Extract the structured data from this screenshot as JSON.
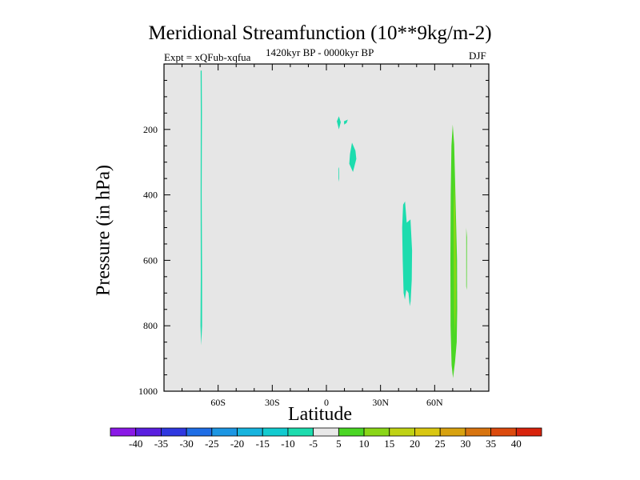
{
  "chart_data": {
    "type": "contour",
    "title": "Meridional Streamfunction (10**9kg/m-2)",
    "subtitle_left": "Expt = xQFub-xqfua",
    "subtitle_center": "1420kyr BP - 0000kyr BP",
    "subtitle_right": "DJF",
    "xlabel": "Latitude",
    "ylabel": "Pressure (in hPa)",
    "xlim": [
      -90,
      90
    ],
    "ylim": [
      0,
      1000
    ],
    "y_reversed": true,
    "xticks": [
      {
        "value": -60,
        "label": "60S"
      },
      {
        "value": -30,
        "label": "30S"
      },
      {
        "value": 0,
        "label": "0"
      },
      {
        "value": 30,
        "label": "30N"
      },
      {
        "value": 60,
        "label": "60N"
      }
    ],
    "yticks": [
      {
        "value": 200,
        "label": "200"
      },
      {
        "value": 400,
        "label": "400"
      },
      {
        "value": 600,
        "label": "600"
      },
      {
        "value": 800,
        "label": "800"
      },
      {
        "value": 1000,
        "label": "1000"
      }
    ],
    "background_color": "#e6e6e6",
    "colorbar": {
      "levels": [
        "-40",
        "-35",
        "-30",
        "-25",
        "-20",
        "-15",
        "-10",
        "-5",
        "5",
        "10",
        "15",
        "20",
        "25",
        "30",
        "35",
        "40"
      ],
      "colors": [
        "#8a19e6",
        "#5a1fe0",
        "#2f38e0",
        "#1f6ee6",
        "#1c96e3",
        "#17b4de",
        "#12cbd0",
        "#1ddcae",
        "#e8e8e8",
        "#4ad624",
        "#8ad617",
        "#bfd214",
        "#d9c711",
        "#d8a20f",
        "#d8740f",
        "#dc4a0d",
        "#d8230c"
      ]
    },
    "regions": [
      {
        "name": "southern-high-lat-cell",
        "color": "#1ddcae",
        "points": [
          [
            -69.7,
            20
          ],
          [
            -69.1,
            20
          ],
          [
            -69.0,
            150
          ],
          [
            -69.1,
            400
          ],
          [
            -68.9,
            650
          ],
          [
            -68.9,
            800
          ],
          [
            -69.4,
            860
          ],
          [
            -69.8,
            800
          ],
          [
            -69.6,
            650
          ],
          [
            -69.7,
            400
          ],
          [
            -69.6,
            150
          ]
        ]
      },
      {
        "name": "upper-tropical-cell-1",
        "color": "#1ddcae",
        "points": [
          [
            5.8,
            175
          ],
          [
            6.9,
            160
          ],
          [
            8.0,
            178
          ],
          [
            6.9,
            200
          ]
        ]
      },
      {
        "name": "upper-tropical-cell-2",
        "color": "#1ddcae",
        "points": [
          [
            9.7,
            175
          ],
          [
            11.9,
            170
          ],
          [
            11.2,
            180
          ],
          [
            9.9,
            185
          ]
        ]
      },
      {
        "name": "upper-tropical-cell-3",
        "color": "#1ddcae",
        "points": [
          [
            13.1,
            275
          ],
          [
            14.2,
            240
          ],
          [
            16.1,
            265
          ],
          [
            16.6,
            290
          ],
          [
            14.7,
            330
          ],
          [
            12.7,
            305
          ]
        ]
      },
      {
        "name": "upper-tropical-cell-4",
        "color": "#1ddcae",
        "points": [
          [
            6.6,
            320
          ],
          [
            6.9,
            315
          ],
          [
            7.1,
            350
          ],
          [
            6.8,
            360
          ]
        ]
      },
      {
        "name": "midlatitude-cell",
        "color": "#1ddcae",
        "points": [
          [
            42.5,
            430
          ],
          [
            43.6,
            420
          ],
          [
            44.5,
            485
          ],
          [
            46.6,
            475
          ],
          [
            47.5,
            570
          ],
          [
            47.3,
            660
          ],
          [
            46.7,
            725
          ],
          [
            46.2,
            740
          ],
          [
            45.5,
            700
          ],
          [
            44.3,
            690
          ],
          [
            43.5,
            720
          ],
          [
            42.8,
            700
          ],
          [
            42.3,
            600
          ],
          [
            42.0,
            500
          ]
        ]
      },
      {
        "name": "northern-high-lat-cell-outer",
        "color": "#4ad624",
        "points": [
          [
            70.0,
            185
          ],
          [
            70.8,
            245
          ],
          [
            71.5,
            400
          ],
          [
            72.4,
            600
          ],
          [
            72.5,
            750
          ],
          [
            72.2,
            850
          ],
          [
            71.3,
            910
          ],
          [
            70.2,
            960
          ],
          [
            69.4,
            920
          ],
          [
            68.8,
            800
          ],
          [
            68.7,
            600
          ],
          [
            68.9,
            400
          ],
          [
            69.3,
            250
          ]
        ]
      },
      {
        "name": "northern-high-lat-cell-inner",
        "color": "#8ad617",
        "points": [
          [
            70.9,
            350
          ],
          [
            71.6,
            500
          ],
          [
            71.9,
            650
          ],
          [
            71.7,
            750
          ],
          [
            71.3,
            830
          ],
          [
            70.8,
            760
          ],
          [
            70.6,
            600
          ],
          [
            70.5,
            450
          ]
        ]
      },
      {
        "name": "northern-high-lat-cell-small",
        "color": "#4ad624",
        "points": [
          [
            77.5,
            500
          ],
          [
            77.9,
            530
          ],
          [
            77.8,
            690
          ],
          [
            77.5,
            680
          ]
        ]
      }
    ]
  }
}
